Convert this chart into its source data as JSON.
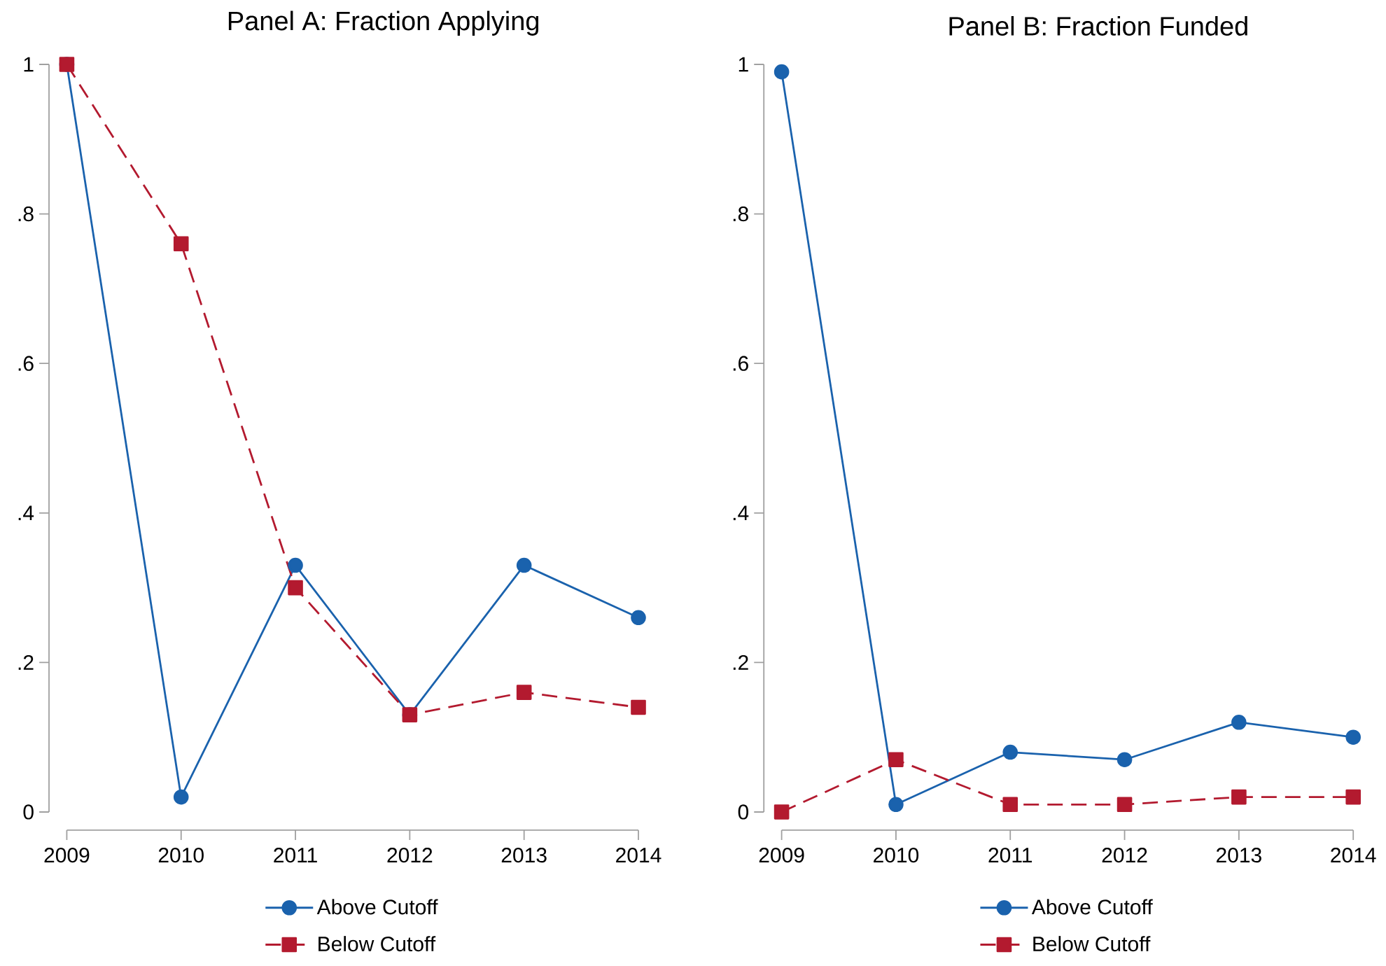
{
  "chart_data": [
    {
      "type": "line",
      "title": "Panel A: Fraction Applying",
      "x": [
        2009,
        2010,
        2011,
        2012,
        2013,
        2014
      ],
      "xlim": [
        2009,
        2014
      ],
      "xticks": [
        2009,
        2010,
        2011,
        2012,
        2013,
        2014
      ],
      "ylim": [
        0,
        1
      ],
      "yticks": [
        {
          "value": 0,
          "label": "0"
        },
        {
          "value": 0.2,
          "label": ".2"
        },
        {
          "value": 0.4,
          "label": ".4"
        },
        {
          "value": 0.6,
          "label": ".6"
        },
        {
          "value": 0.8,
          "label": ".8"
        },
        {
          "value": 1,
          "label": "1"
        }
      ],
      "legend": "bottom",
      "series": [
        {
          "name": "Above Cutoff",
          "color": "#1a62ad",
          "marker": "circle",
          "line_style": "solid",
          "values": [
            1.0,
            0.02,
            0.33,
            0.13,
            0.33,
            0.26
          ]
        },
        {
          "name": "Below Cutoff",
          "color": "#b31a2f",
          "marker": "square",
          "line_style": "dashed",
          "values": [
            1.0,
            0.76,
            0.3,
            0.13,
            0.16,
            0.14
          ]
        }
      ]
    },
    {
      "type": "line",
      "title": "Panel B: Fraction Funded",
      "x": [
        2009,
        2010,
        2011,
        2012,
        2013,
        2014
      ],
      "xlim": [
        2009,
        2014
      ],
      "xticks": [
        2009,
        2010,
        2011,
        2012,
        2013,
        2014
      ],
      "ylim": [
        0,
        1
      ],
      "yticks": [
        {
          "value": 0,
          "label": "0"
        },
        {
          "value": 0.2,
          "label": ".2"
        },
        {
          "value": 0.4,
          "label": ".4"
        },
        {
          "value": 0.6,
          "label": ".6"
        },
        {
          "value": 0.8,
          "label": ".8"
        },
        {
          "value": 1,
          "label": "1"
        }
      ],
      "legend": "bottom",
      "series": [
        {
          "name": "Above Cutoff",
          "color": "#1a62ad",
          "marker": "circle",
          "line_style": "solid",
          "values": [
            0.99,
            0.01,
            0.08,
            0.07,
            0.12,
            0.1
          ]
        },
        {
          "name": "Below Cutoff",
          "color": "#b31a2f",
          "marker": "square",
          "line_style": "dashed",
          "values": [
            0,
            0.07,
            0.01,
            0.01,
            0.02,
            0.02
          ]
        }
      ]
    }
  ]
}
